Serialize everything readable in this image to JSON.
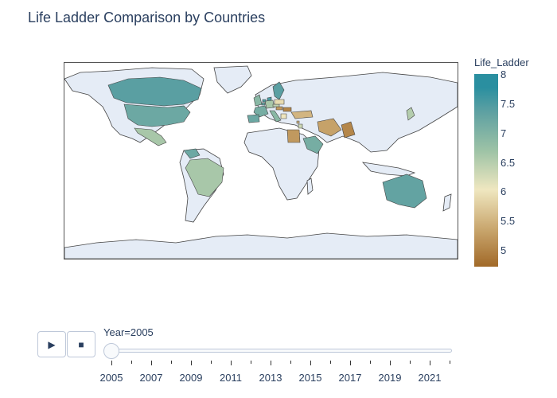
{
  "title": "Life Ladder Comparison by Countries",
  "colorbar": {
    "title": "Life_Ladder",
    "ticks": [
      "8",
      "7.5",
      "7",
      "6.5",
      "6",
      "5.5",
      "5"
    ],
    "range": [
      4.7,
      8.0
    ],
    "colorscale": [
      "#a16928",
      "#caa870",
      "#efe7c0",
      "#9ec3a6",
      "#5fa1a2",
      "#2a8fa0"
    ]
  },
  "slider": {
    "label": "Year=2005",
    "current_year": 2005,
    "year_labels": [
      "2005",
      "2007",
      "2009",
      "2011",
      "2013",
      "2015",
      "2017",
      "2019",
      "2021"
    ]
  },
  "controls": {
    "play_icon": "▶",
    "stop_icon": "■"
  },
  "colors": {
    "land": "#e5ecf6",
    "coast": "#444444",
    "frame": "#555555"
  },
  "chart_data": {
    "type": "choropleth",
    "projection": "equirectangular",
    "frame_year": 2005,
    "color_range": [
      4.7,
      8.0
    ],
    "regions": [
      {
        "country": "Canada",
        "value": 7.4
      },
      {
        "country": "United States",
        "value": 7.2
      },
      {
        "country": "Mexico",
        "value": 6.6
      },
      {
        "country": "Brazil",
        "value": 6.6
      },
      {
        "country": "Venezuela",
        "value": 7.2
      },
      {
        "country": "Australia",
        "value": 7.3
      },
      {
        "country": "Saudi Arabia",
        "value": 7.1
      },
      {
        "country": "Egypt",
        "value": 5.2
      },
      {
        "country": "Iran",
        "value": 5.3
      },
      {
        "country": "Pakistan",
        "value": 5.0
      },
      {
        "country": "Turkey",
        "value": 5.5
      },
      {
        "country": "Sweden",
        "value": 7.4
      },
      {
        "country": "Denmark",
        "value": 7.6
      },
      {
        "country": "United Kingdom",
        "value": 6.9
      },
      {
        "country": "France",
        "value": 7.1
      },
      {
        "country": "Spain",
        "value": 7.2
      },
      {
        "country": "Italy",
        "value": 6.9
      },
      {
        "country": "Germany",
        "value": 6.6
      },
      {
        "country": "Belgium",
        "value": 7.3
      },
      {
        "country": "Netherlands",
        "value": 7.5
      },
      {
        "country": "Hungary",
        "value": 5.2
      },
      {
        "country": "Romania",
        "value": 5.0
      },
      {
        "country": "Czechia",
        "value": 6.4
      },
      {
        "country": "Poland",
        "value": 5.9
      },
      {
        "country": "Greece",
        "value": 6.0
      },
      {
        "country": "Lebanon",
        "value": 5.5
      },
      {
        "country": "Jordan",
        "value": 6.3
      },
      {
        "country": "Japan",
        "value": 6.5
      }
    ]
  }
}
